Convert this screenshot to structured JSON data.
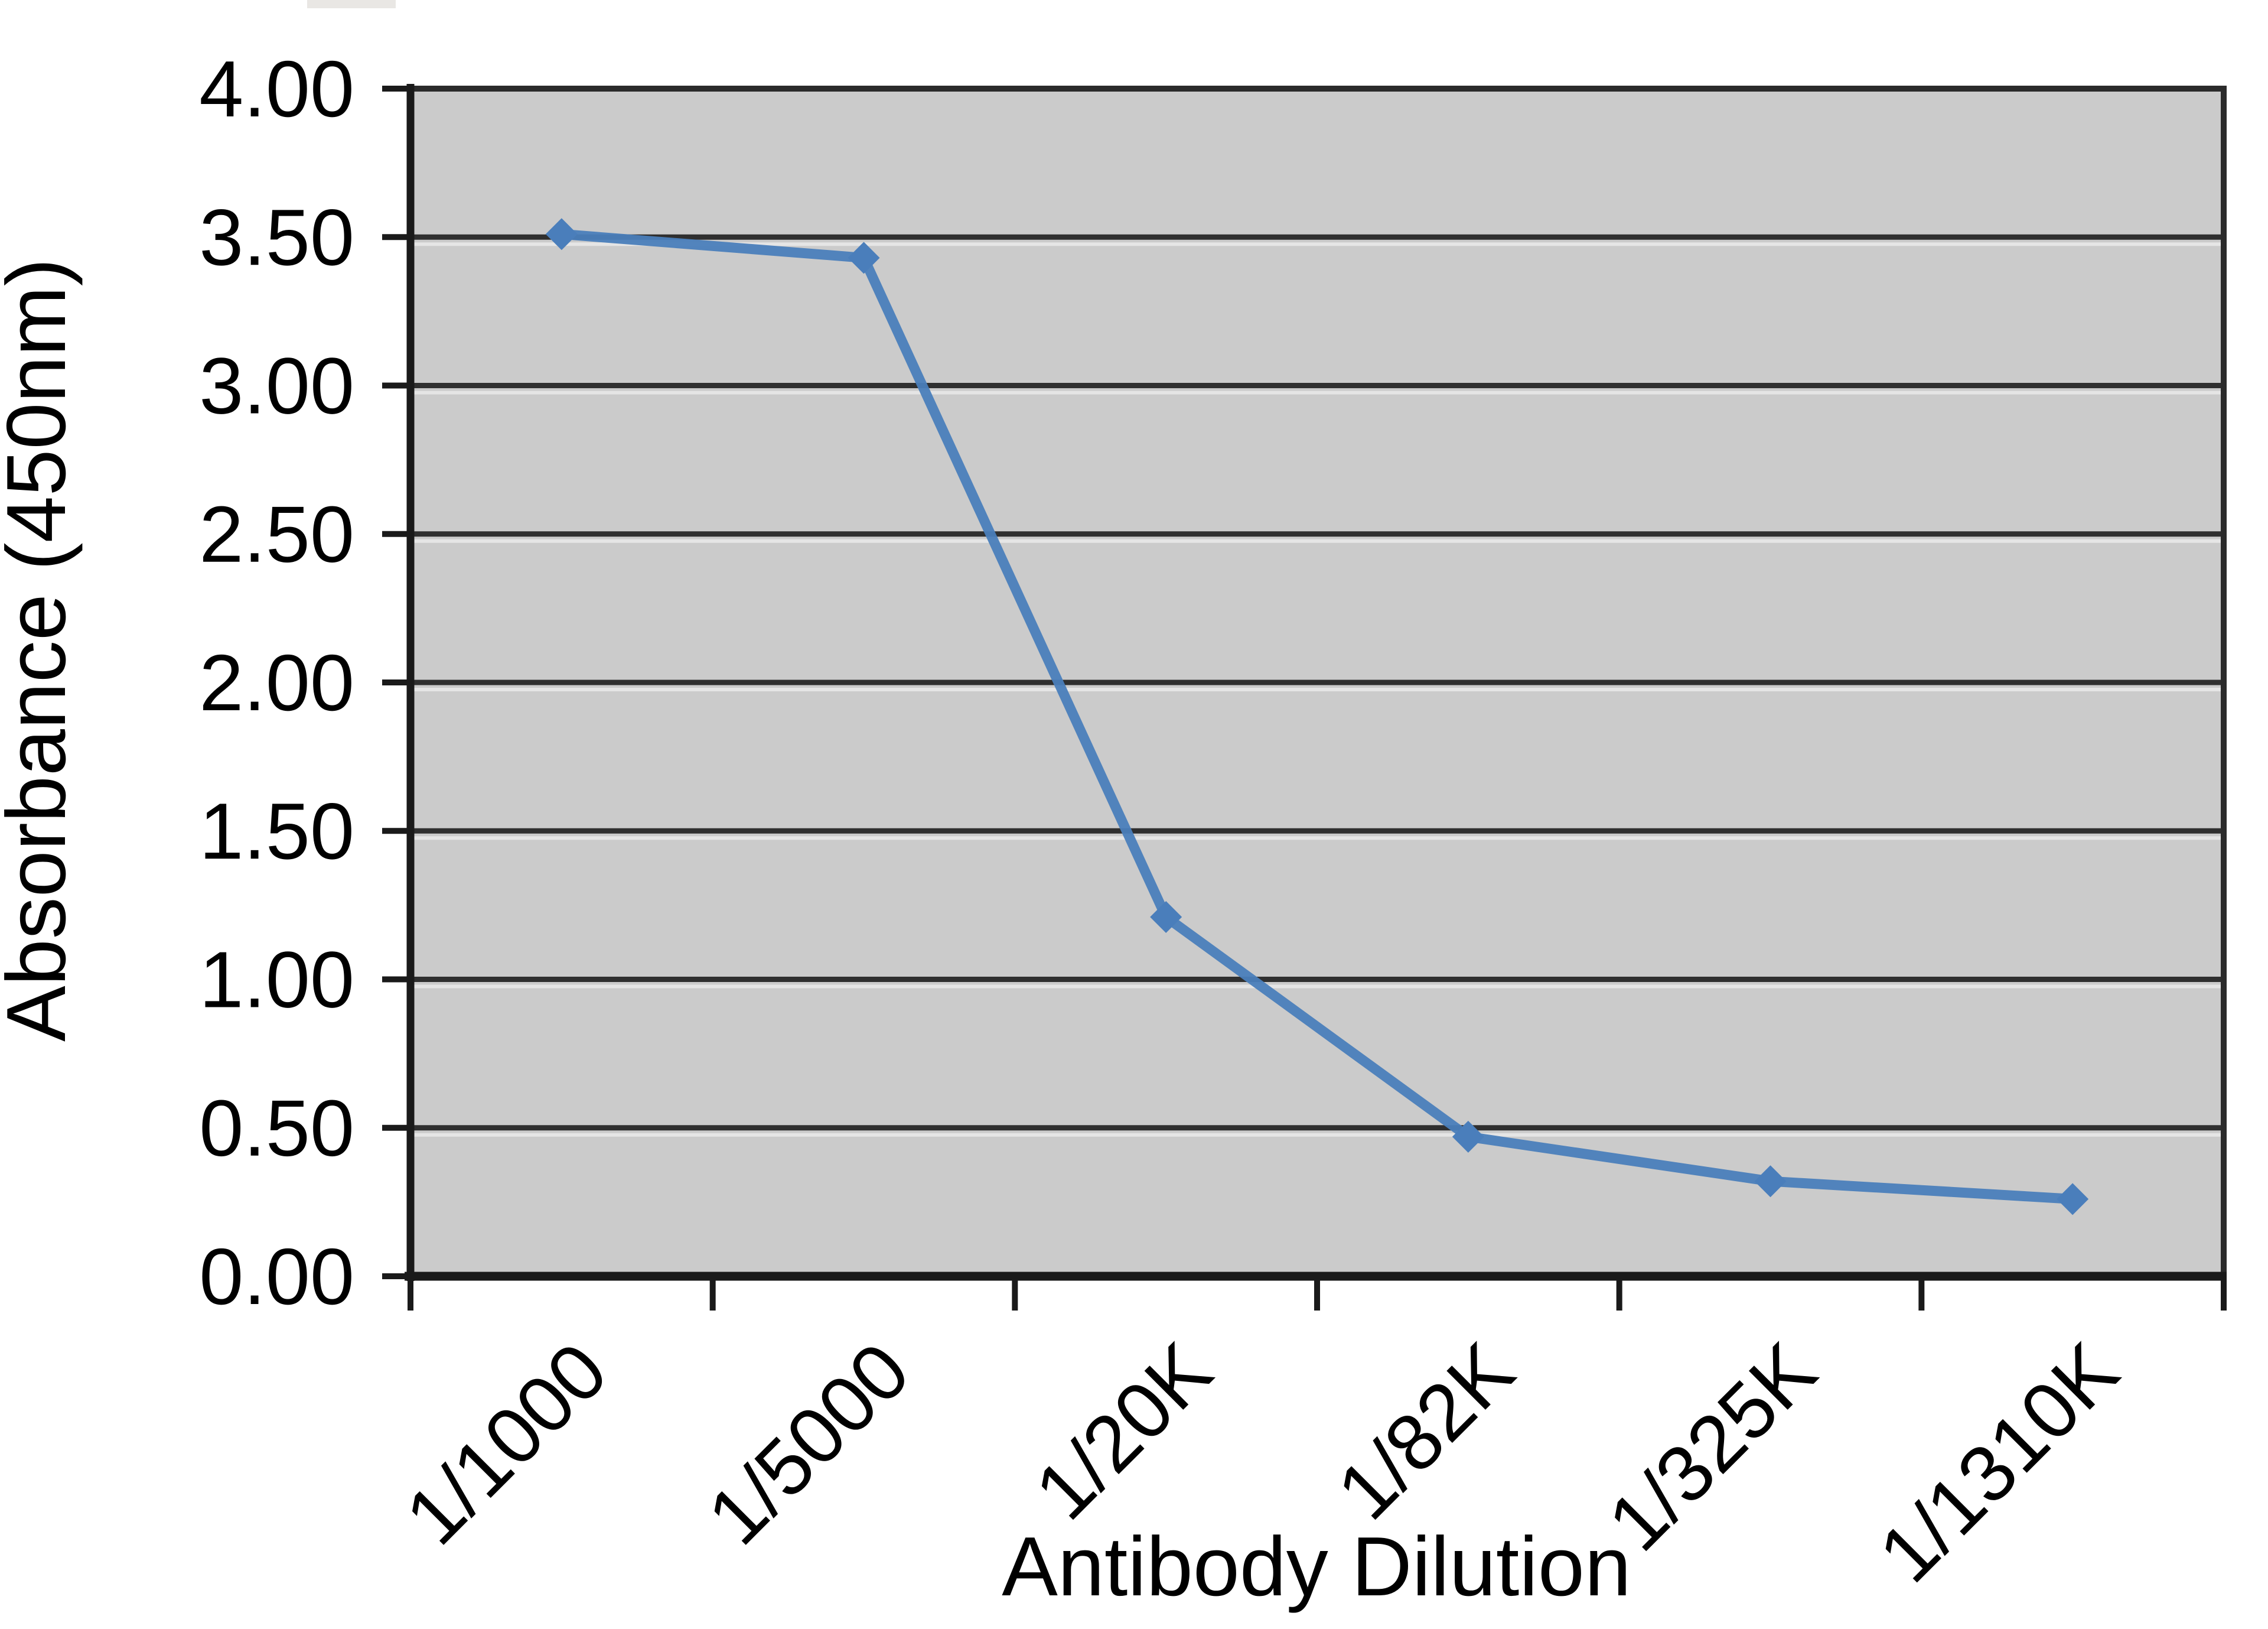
{
  "chart_data": {
    "type": "line",
    "title": "",
    "categories": [
      "1/1000",
      "1/5000",
      "1/20K",
      "1/82K",
      "1/325K",
      "1/1310K"
    ],
    "series": [
      {
        "name": "Absorbance (450nm)",
        "values": [
          3.51,
          3.43,
          1.21,
          0.47,
          0.32,
          0.26
        ]
      }
    ],
    "xlabel": "Antibody Dilution",
    "ylabel": "Absorbance (450nm)",
    "ylim": [
      0,
      4
    ],
    "ytick_step": 0.5,
    "ytick_labels": [
      "0.00",
      "0.50",
      "1.00",
      "1.50",
      "2.00",
      "2.50",
      "3.00",
      "3.50",
      "4.00"
    ],
    "grid": true,
    "legend_position": "none",
    "marker": "diamond",
    "x_axis_label_rotation_deg": -45,
    "colors": {
      "line": "#4A7EBB",
      "marker": "#4A7EBB",
      "plot_background": "#CBCBCB",
      "gridline": "#2F2F2F",
      "gridline_echo": "#E5E5E5",
      "axis_line": "#1A1A1A",
      "text": "#000000",
      "page_background": "#FFFFFF"
    }
  }
}
